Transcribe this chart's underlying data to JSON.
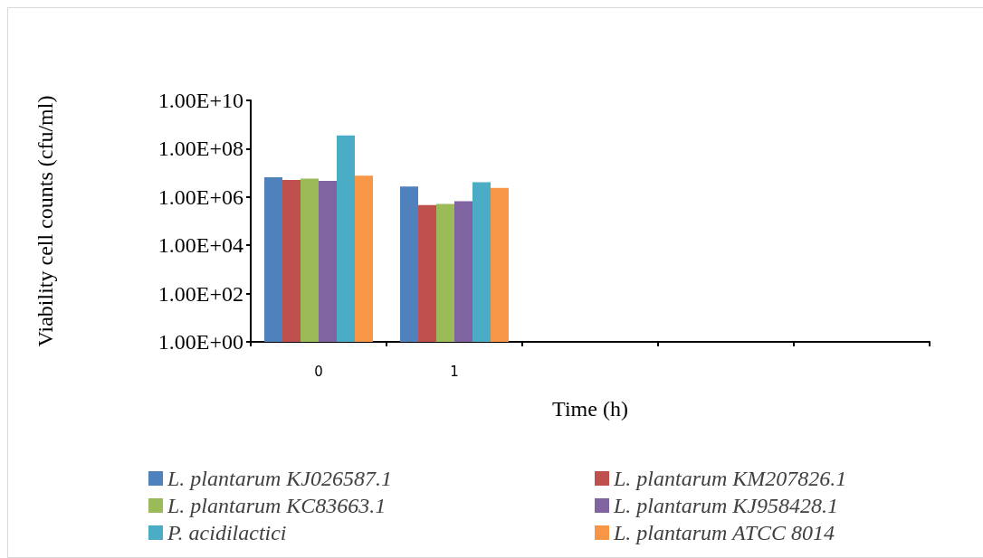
{
  "chart_data": {
    "type": "bar",
    "xlabel": "Time (h)",
    "ylabel": "Viability cell counts (cfu/ml)",
    "categories": [
      "0",
      "1",
      null,
      null,
      null
    ],
    "series": [
      {
        "name": "L. plantarum KJ026587.1",
        "color": "#4f81bd",
        "values": [
          6500000.0,
          2700000.0,
          null,
          null,
          null
        ]
      },
      {
        "name": "L. plantarum KM207826.1",
        "color": "#c0504d",
        "values": [
          5100000.0,
          460000.0,
          null,
          null,
          null
        ]
      },
      {
        "name": "L. plantarum KC83663.1",
        "color": "#9bbb59",
        "values": [
          5700000.0,
          520000.0,
          null,
          null,
          null
        ]
      },
      {
        "name": "L. plantarum KJ958428.1",
        "color": "#8064a2",
        "values": [
          4600000.0,
          670000.0,
          null,
          null,
          null
        ]
      },
      {
        "name": "P. acidilactici",
        "color": "#4bacc6",
        "values": [
          350000000.0,
          4100000.0,
          null,
          null,
          null
        ]
      },
      {
        "name": "L. plantarum ATCC 8014",
        "color": "#f79646",
        "values": [
          7600000.0,
          2400000.0,
          null,
          null,
          null
        ]
      }
    ],
    "log": "y",
    "ylim": [
      1,
      10000000000.0
    ],
    "yticks": [
      {
        "value": 1,
        "label": "1.00E+00"
      },
      {
        "value": 100,
        "label": "1.00E+02"
      },
      {
        "value": 10000,
        "label": "1.00E+04"
      },
      {
        "value": 1000000,
        "label": "1.00E+06"
      },
      {
        "value": 100000000,
        "label": "1.00E+08"
      },
      {
        "value": 10000000000,
        "label": "1.00E+10"
      }
    ],
    "grid": false,
    "legend": "bottom"
  }
}
